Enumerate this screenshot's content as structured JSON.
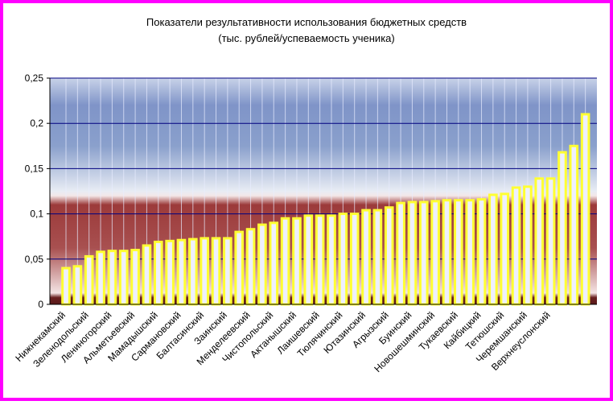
{
  "chart_data": {
    "type": "bar",
    "title": "Показатели результативности использования бюджетных средств",
    "subtitle": "(тыс. рублей/успеваемость ученика)",
    "categories": [
      "Нижнекамский",
      null,
      "Зеленодольский",
      null,
      "Лениногорский",
      null,
      "Альметьевский",
      null,
      "Мамадышский",
      null,
      "Сармановский",
      null,
      "Балтасинский",
      null,
      "Заинский",
      null,
      "Менделеевский",
      null,
      "Чистопольский",
      null,
      "Актанышский",
      null,
      "Лаишевский",
      null,
      "Тюлячинский",
      null,
      "Ютазинский",
      null,
      "Агрызский",
      null,
      "Буинский",
      null,
      "Новошешминский",
      null,
      "Тукаевский",
      null,
      "Кайбицкий",
      null,
      "Тетюшский",
      null,
      "Черемшанский",
      null,
      "Верхнеуслонский",
      null,
      null,
      null
    ],
    "values": [
      0.04,
      0.042,
      0.053,
      0.058,
      0.059,
      0.059,
      0.06,
      0.065,
      0.069,
      0.07,
      0.071,
      0.072,
      0.073,
      0.073,
      0.073,
      0.08,
      0.083,
      0.088,
      0.09,
      0.095,
      0.095,
      0.098,
      0.098,
      0.098,
      0.1,
      0.1,
      0.104,
      0.104,
      0.107,
      0.112,
      0.113,
      0.113,
      0.114,
      0.115,
      0.115,
      0.115,
      0.116,
      0.121,
      0.122,
      0.129,
      0.13,
      0.139,
      0.139,
      0.168,
      0.175,
      0.21
    ],
    "color": "#ffff33",
    "ylim": [
      0,
      0.25
    ],
    "yticks": [
      0,
      {
        "value": 0.05,
        "label": "0,05"
      },
      {
        "value": 0.1,
        "label": "0,1"
      },
      {
        "value": 0.15,
        "label": "0,15"
      },
      {
        "value": 0.2,
        "label": "0,2"
      },
      {
        "value": 0.25,
        "label": "0,25"
      }
    ],
    "grid": true
  }
}
